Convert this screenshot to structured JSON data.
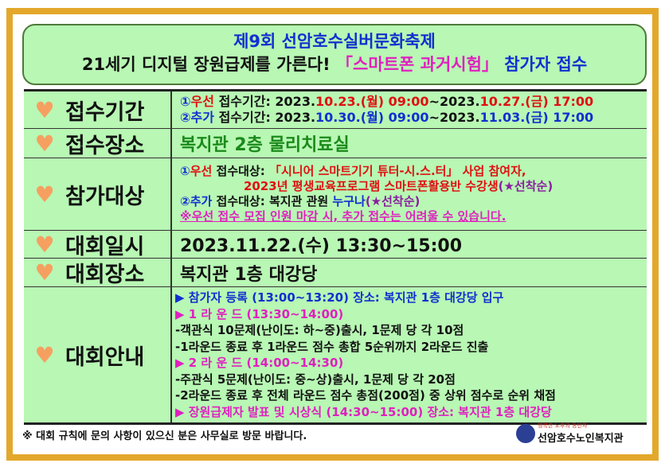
{
  "title": {
    "line1": "제9회 선암호수실버문화축제",
    "line2_a": "21세기 디지털 장원급제를 가른다! ",
    "line2_b": "「스마트폰 과거시험」",
    "line2_c": " 참가자 접수"
  },
  "rows": {
    "period": {
      "label": "접수기간",
      "l1": [
        "①",
        "우선",
        " 접수기간: 2023.",
        "10.23.(월) 09:00",
        "~2023.",
        "10.27.(금) 17:00"
      ],
      "l2": [
        "②",
        "추가",
        " 접수기간: 2023.",
        "10.30.(월) 09:00",
        "~2023.",
        "11.03.(금) 17:00"
      ]
    },
    "place": {
      "label": "접수장소",
      "value": "복지관 2층 물리치료실"
    },
    "target": {
      "label": "참가대상",
      "l1": [
        "①",
        "우선",
        " 접수대상: ",
        "「시니어 스마트기기 튜터-시.스.터」 사업 참여자,"
      ],
      "l2": [
        "2023년 평생교육프로그램 스마트폰활용반 수강생",
        "(★선착순)"
      ],
      "l3": [
        "②",
        "추가",
        " 접수대상: 복지관 관원 ",
        "누구나",
        "(★선착순)"
      ],
      "l4": "※우선 접수 모집 인원 마감 시, 추가 접수는 어려울 수 있습니다."
    },
    "date": {
      "label": "대회일시",
      "value": "2023.11.22.(수) 13:30~15:00"
    },
    "venue": {
      "label": "대회장소",
      "value": "복지관 1층 대강당"
    },
    "guide": {
      "label": "대회안내",
      "lines": [
        "▶ 참가자 등록 (13:00~13:20) 장소: 복지관 1층 대강당 입구",
        "▶ 1 라 운 드 (13:30~14:00)",
        "-객관식 10문제(난이도: 하~중)출시, 1문제 당 각 10점",
        "-1라운드 종료 후 1라운드 점수 총합 5순위까지 2라운드 진출",
        "▶ 2 라 운 드 (14:00~14:30)",
        "-주관식 5문제(난이도: 중~상)출시, 1문제 당 각 20점",
        "-2라운드 종료 후 전체 라운드 점수 총점(200점) 중 상위 점수로 순위 채점",
        "▶ 장원급제자 발표 및 시상식 (14:30~15:00) 장소: 복지관 1층 대강당"
      ]
    }
  },
  "footer": {
    "note": "※ 대회 규칙에 문의 사항이 있으신 분은 사무실로 방문 바랍니다.",
    "logo_sub": "행복한 노후의 동반자",
    "logo_name": "선암호수노인복지관"
  },
  "colors": {
    "border": "#e3a82b",
    "panel": "#b8f7b4",
    "heart": "#f5a060"
  }
}
